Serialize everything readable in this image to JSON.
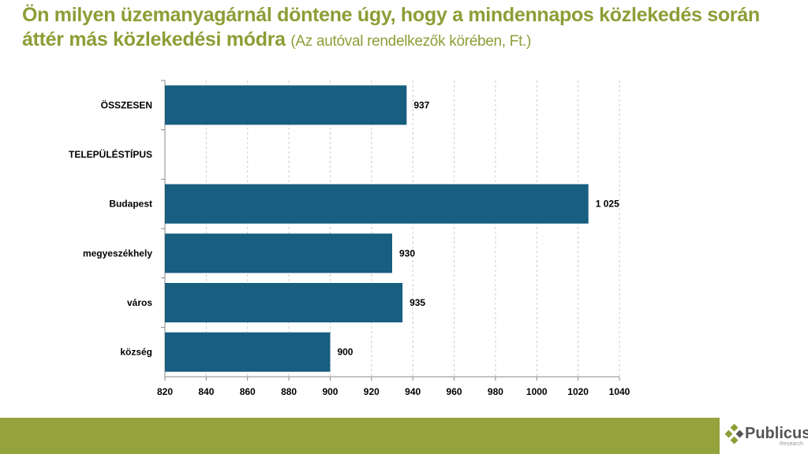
{
  "title": {
    "main": "Ön milyen üzemanyagárnál döntene úgy, hogy a mindennapos közlekedés során áttér más közlekedési módra",
    "sub": "(Az autóval rendelkezők körében, Ft.)"
  },
  "logo": {
    "name": "Publicus",
    "sub": "Research"
  },
  "colors": {
    "bar": "#175e80",
    "title": "#8c9e36",
    "band": "#95a33d"
  },
  "chart_data": {
    "type": "bar",
    "orientation": "horizontal",
    "categories": [
      "ÖSSZESEN",
      "TELEPÜLÉSTÍPUS",
      "Budapest",
      "megyeszékhely",
      "város",
      "község"
    ],
    "values": [
      937,
      null,
      1025,
      930,
      935,
      900
    ],
    "labels": [
      "937",
      "",
      "1 025",
      "930",
      "935",
      "900"
    ],
    "xlim": [
      820,
      1040
    ],
    "ticks": [
      820,
      840,
      860,
      880,
      900,
      920,
      940,
      960,
      980,
      1000,
      1020,
      1040
    ],
    "grid": "vertical dashed"
  }
}
